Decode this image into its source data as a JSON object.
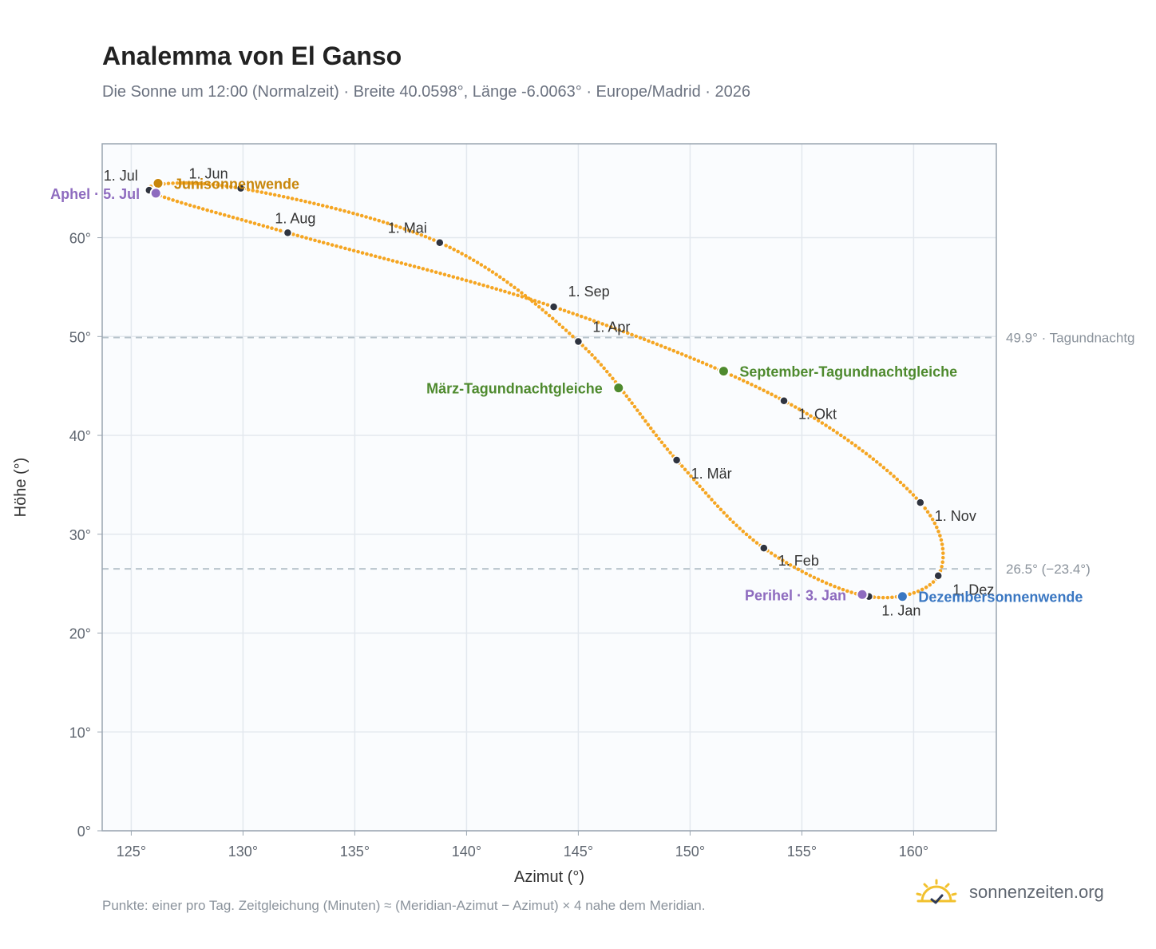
{
  "header": {
    "title": "Analemma von El Ganso",
    "subtitle": "Die Sonne um 12:00 (Normalzeit) · Breite 40.0598°, Länge -6.0063° · Europe/Madrid · 2026"
  },
  "footnote": "Punkte: einer pro Tag. Zeitgleichung (Minuten) ≈ (Meridian-Azimut − Azimut) × 4 nahe dem Meridian.",
  "brand": {
    "name": "sonnenzeiten.org",
    "icon": "sun-check-icon"
  },
  "colors": {
    "curve": "#f5a623",
    "month_dot": "#2f3440",
    "equinox": "#4e8a2e",
    "junsol": "#c8860a",
    "decsol": "#3a77c2",
    "apsis": "#8e6bbf",
    "ref_line": "#b8c4cc",
    "plot_bg": "#fafcfe"
  },
  "chart_data": {
    "type": "scatter",
    "xlabel": "Azimut (°)",
    "ylabel": "Höhe (°)",
    "xlim": [
      123.7,
      163.7
    ],
    "ylim": [
      0,
      69.5
    ],
    "xticks": [
      125,
      130,
      135,
      140,
      145,
      150,
      155,
      160
    ],
    "xtick_labels": [
      "125°",
      "130°",
      "135°",
      "140°",
      "145°",
      "150°",
      "155°",
      "160°"
    ],
    "yticks": [
      0,
      10,
      20,
      30,
      40,
      50,
      60
    ],
    "ytick_labels": [
      "0°",
      "10°",
      "20°",
      "30°",
      "40°",
      "50°",
      "60°"
    ],
    "grid": true,
    "series": [
      {
        "points": [
          [
            158.0,
            23.7
          ],
          [
            153.3,
            28.6
          ],
          [
            149.4,
            37.5
          ],
          [
            145.0,
            49.5
          ],
          [
            138.8,
            59.5
          ],
          [
            129.9,
            65.0
          ],
          [
            125.8,
            64.8
          ],
          [
            132.0,
            60.5
          ],
          [
            143.9,
            53.0
          ],
          [
            154.2,
            43.5
          ],
          [
            160.3,
            33.2
          ],
          [
            161.1,
            25.8
          ],
          [
            158.0,
            23.7
          ]
        ]
      }
    ],
    "month_markers": [
      {
        "label": "1. Jan",
        "x": 158.0,
        "y": 23.7
      },
      {
        "label": "1. Feb",
        "x": 153.3,
        "y": 28.6
      },
      {
        "label": "1. Mär",
        "x": 149.4,
        "y": 37.5
      },
      {
        "label": "1. Apr",
        "x": 145.0,
        "y": 49.5
      },
      {
        "label": "1. Mai",
        "x": 138.8,
        "y": 59.5
      },
      {
        "label": "1. Jun",
        "x": 129.9,
        "y": 65.0
      },
      {
        "label": "1. Jul",
        "x": 125.8,
        "y": 64.8
      },
      {
        "label": "1. Aug",
        "x": 132.0,
        "y": 60.5
      },
      {
        "label": "1. Sep",
        "x": 143.9,
        "y": 53.0
      },
      {
        "label": "1. Okt",
        "x": 154.2,
        "y": 43.5
      },
      {
        "label": "1. Nov",
        "x": 160.3,
        "y": 33.2
      },
      {
        "label": "1. Dez",
        "x": 161.1,
        "y": 25.8
      }
    ],
    "events": [
      {
        "label": "März-Tagundnachtgleiche",
        "x": 146.8,
        "y": 44.8,
        "color": "#4e8a2e",
        "side": "left"
      },
      {
        "label": "September-Tagundnachtgleiche",
        "x": 151.5,
        "y": 46.5,
        "color": "#4e8a2e",
        "side": "right"
      },
      {
        "label": "Junisonnenwende",
        "x": 126.2,
        "y": 65.5,
        "color": "#c8860a",
        "side": "right"
      },
      {
        "label": "Dezembersonnenwende",
        "x": 159.5,
        "y": 23.7,
        "color": "#3a77c2",
        "side": "right"
      },
      {
        "label": "Aphel · 5. Jul",
        "x": 126.1,
        "y": 64.5,
        "color": "#8e6bbf",
        "side": "left"
      },
      {
        "label": "Perihel · 3. Jan",
        "x": 157.7,
        "y": 23.9,
        "color": "#8e6bbf",
        "side": "left"
      }
    ],
    "reference_lines": [
      {
        "y": 49.9,
        "label": "49.9° · Tagundnachtg"
      },
      {
        "y": 26.5,
        "label": "26.5° (−23.4°)"
      }
    ]
  }
}
